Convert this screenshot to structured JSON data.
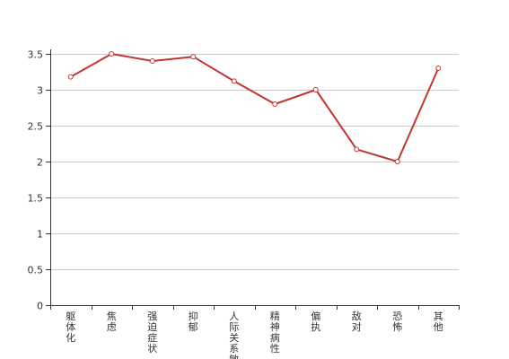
{
  "chart_data": {
    "type": "line",
    "categories": [
      "躯体化",
      "焦虑",
      "强迫症状",
      "抑郁",
      "人际关系敏感",
      "精神病性",
      "偏执",
      "敌对",
      "恐怖",
      "其他"
    ],
    "values": [
      3.18,
      3.5,
      3.4,
      3.46,
      3.12,
      2.8,
      3.0,
      2.17,
      2.0,
      3.3
    ],
    "yticks": [
      0,
      0.5,
      1,
      1.5,
      2,
      2.5,
      3,
      3.5
    ],
    "ylim": [
      0,
      3.5
    ],
    "grid": true,
    "colors": {
      "series": "#c23531",
      "axis": "#333333",
      "grid": "#cccccc"
    }
  }
}
